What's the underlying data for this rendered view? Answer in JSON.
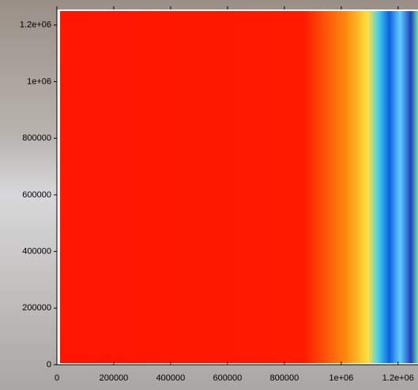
{
  "chart_data": {
    "type": "heatmap",
    "xlim": [
      0,
      1270000
    ],
    "ylim": [
      0,
      1255000
    ],
    "xticks": [
      0,
      200000,
      400000,
      600000,
      800000,
      {
        "value": 1000000,
        "label": "1e+06"
      },
      {
        "value": 1200000,
        "label": "1.2e+06"
      }
    ],
    "yticks": [
      0,
      200000,
      400000,
      600000,
      800000,
      {
        "value": 1000000,
        "label": "1e+06"
      },
      {
        "value": 1200000,
        "label": "1.2e+06"
      }
    ]
  }
}
